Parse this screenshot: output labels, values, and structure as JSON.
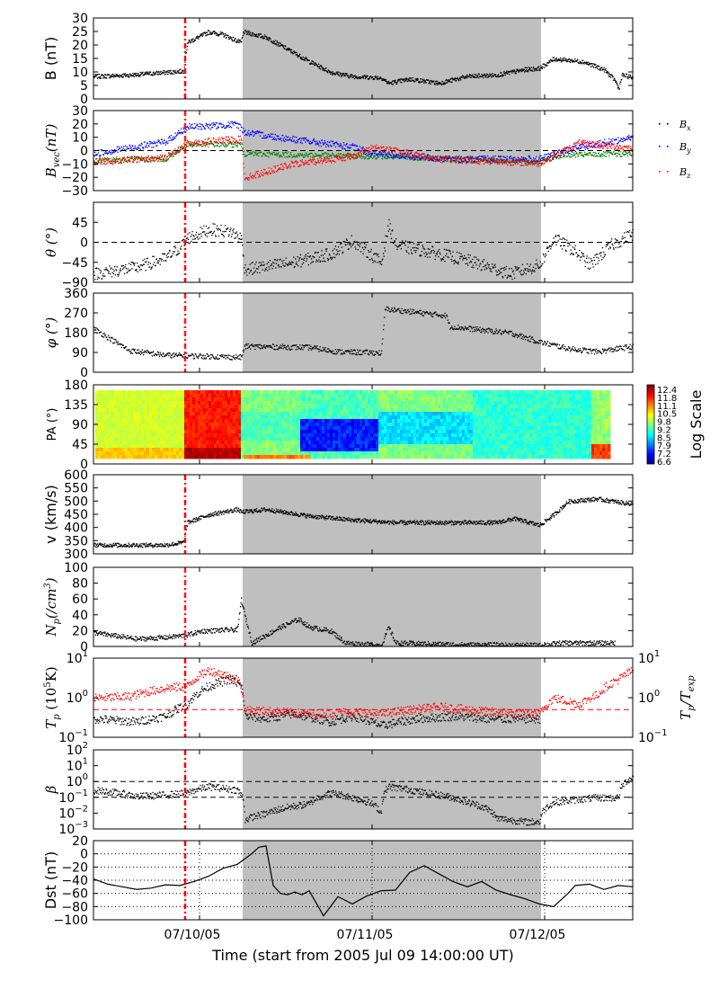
{
  "figure": {
    "xlabel": "Time (start from 2005 Jul 09 14:00:00 UT)",
    "date_ticks": [
      "07/10/05",
      "07/11/05",
      "07/12/05"
    ],
    "colorbar_label": "Log Scale",
    "colorbar_ticks": [
      "12.4",
      "11.8",
      "11.1",
      "10.5",
      "9.8",
      "9.2",
      "8.5",
      "7.9",
      "7.2",
      "6.6"
    ],
    "shaded_color": "#bfbfbf",
    "marker_color": "#ff0000"
  },
  "chart_data": [
    {
      "type": "scatter",
      "ylabel": "B (nT)",
      "yticks": [
        "0",
        "5",
        "10",
        "15",
        "20",
        "25",
        "30"
      ],
      "ylim": [
        0,
        30
      ],
      "series": [
        {
          "values_description_hours": [
            0,
            10,
            20,
            24,
            25,
            32,
            36,
            48,
            60,
            72,
            80,
            84,
            96,
            100,
            110,
            114,
            120,
            125,
            130
          ],
          "values": [
            9,
            9.5,
            10,
            10.5,
            22,
            26,
            22,
            25,
            21,
            13,
            9,
            8,
            9,
            7,
            8,
            12,
            15,
            13,
            8
          ]
        }
      ]
    },
    {
      "type": "scatter",
      "ylabel": "B_vec(nT)",
      "yticks": [
        "30",
        "20",
        "10",
        "0",
        "−10",
        "−20",
        "−30"
      ],
      "ylim": [
        -30,
        30
      ],
      "legend": [
        "B_x",
        "B_y",
        "B_z"
      ],
      "legend_colors": [
        "#000000",
        "#0000ff",
        "#ff0000"
      ]
    },
    {
      "type": "scatter",
      "ylabel": "θ (°)",
      "yticks": [
        "45",
        "0",
        "−45",
        "−90"
      ],
      "ylim": [
        -90,
        90
      ]
    },
    {
      "type": "scatter",
      "ylabel": "φ (°)",
      "yticks": [
        "360",
        "270",
        "180",
        "90",
        "0"
      ],
      "ylim": [
        0,
        360
      ]
    },
    {
      "type": "heatmap",
      "ylabel": "PA (°)",
      "yticks": [
        "180",
        "135",
        "90",
        "45",
        "0"
      ],
      "ylim": [
        0,
        180
      ]
    },
    {
      "type": "scatter",
      "ylabel": "v (km/s)",
      "yticks": [
        "600",
        "550",
        "500",
        "450",
        "400",
        "350",
        "300"
      ],
      "ylim": [
        300,
        600
      ]
    },
    {
      "type": "scatter",
      "ylabel": "N_p(/cm^3)",
      "yticks": [
        "100",
        "80",
        "60",
        "40",
        "20",
        "0"
      ],
      "ylim": [
        0,
        100
      ]
    },
    {
      "type": "scatter",
      "ylabel": "T_p (10^5K)",
      "ylabel2": "T_p/T_exp",
      "yticks": [
        "10^1",
        "10^0",
        "10^-1"
      ],
      "ylim": [
        0.1,
        10
      ],
      "log": true
    },
    {
      "type": "scatter",
      "ylabel": "β",
      "yticks": [
        "10^2",
        "10^1",
        "10^0",
        "10^-1",
        "10^-2",
        "10^-3"
      ],
      "ylim": [
        0.001,
        100
      ],
      "log": true
    },
    {
      "type": "line",
      "ylabel": "Dst (nT)",
      "yticks": [
        "20",
        "0",
        "−20",
        "−40",
        "−60",
        "−80",
        "−100"
      ],
      "ylim": [
        -100,
        20
      ],
      "x_hours": [
        0,
        4,
        8,
        12,
        16,
        20,
        24,
        28,
        32,
        36,
        40,
        44,
        46,
        48,
        50,
        52,
        54,
        56,
        58,
        60,
        64,
        68,
        72,
        76,
        80,
        84,
        88,
        92,
        96,
        100,
        104,
        108,
        112,
        116,
        120,
        124,
        128,
        132,
        134,
        138,
        142,
        146,
        150
      ],
      "values": [
        -38,
        -46,
        -50,
        -54,
        -52,
        -47,
        -48,
        -42,
        -34,
        -22,
        -16,
        0,
        10,
        12,
        -48,
        -60,
        -62,
        -58,
        -62,
        -56,
        -94,
        -65,
        -76,
        -64,
        -56,
        -55,
        -28,
        -18,
        -30,
        -42,
        -50,
        -42,
        -55,
        -62,
        -68,
        -76,
        -80,
        -60,
        -48,
        -46,
        -54,
        -48,
        -50
      ]
    }
  ]
}
